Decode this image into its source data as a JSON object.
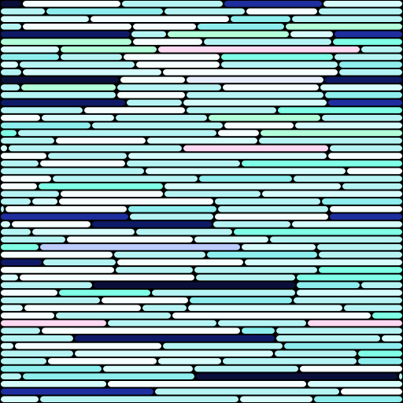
{
  "artwork": {
    "description_free": true,
    "palette": {
      "white": "#F6FFFF",
      "pale-cyan": "#D6FCFC",
      "light-cyan": "#B6F4F4",
      "cyan": "#8EEEEE",
      "aqua": "#7FFFE6",
      "mint": "#B2FFD9",
      "lavender": "#E6EEFF",
      "periwinkle": "#BCCCFF",
      "pink": "#FFD9F2",
      "royal-blue": "#1E2E9E",
      "navy": "#0E1A66",
      "midnight": "#0A0F3A"
    },
    "rows": [
      [
        [
          "midnight",
          28
        ],
        [
          "white",
          126
        ],
        [
          "light-cyan",
          130
        ],
        [
          "royal-blue",
          126
        ],
        [
          "pale-cyan",
          102
        ]
      ],
      [
        [
          "light-cyan",
          58
        ],
        [
          "cyan",
          150
        ],
        [
          "light-cyan",
          104
        ],
        [
          "white",
          92
        ],
        [
          "light-cyan",
          108
        ]
      ],
      [
        [
          "pale-cyan",
          114
        ],
        [
          "white",
          178
        ],
        [
          "cyan",
          78
        ],
        [
          "light-cyan",
          142
        ]
      ],
      [
        [
          "light-cyan",
          28
        ],
        [
          "white",
          140
        ],
        [
          "white",
          82
        ],
        [
          "cyan",
          112
        ],
        [
          "mint",
          150
        ]
      ],
      [
        [
          "navy",
          166
        ],
        [
          "light-cyan",
          46
        ],
        [
          "mint",
          156
        ],
        [
          "pale-cyan",
          56
        ],
        [
          "royal-blue",
          88
        ]
      ],
      [
        [
          "mint",
          168
        ],
        [
          "white",
          90
        ],
        [
          "light-cyan",
          164
        ],
        [
          "aqua",
          90
        ]
      ],
      [
        [
          "pale-cyan",
          76
        ],
        [
          "mint",
          124
        ],
        [
          "pink",
          258
        ],
        [
          "light-cyan",
          54
        ]
      ],
      [
        [
          "cyan",
          76
        ],
        [
          "light-cyan",
          80
        ],
        [
          "white",
          124
        ],
        [
          "aqua",
          144
        ],
        [
          "light-cyan",
          88
        ]
      ],
      [
        [
          "pale-cyan",
          24
        ],
        [
          "light-cyan",
          148
        ],
        [
          "white",
          108
        ],
        [
          "light-cyan",
          150
        ],
        [
          "cyan",
          82
        ]
      ],
      [
        [
          "light-cyan",
          28
        ],
        [
          "pale-cyan",
          178
        ],
        [
          "white",
          224
        ],
        [
          "light-cyan",
          82
        ]
      ],
      [
        [
          "midnight",
          152
        ],
        [
          "white",
          84
        ],
        [
          "lavender",
          176
        ],
        [
          "navy",
          100
        ]
      ],
      [
        [
          "light-cyan",
          26
        ],
        [
          "mint",
          122
        ],
        [
          "light-cyan",
          134
        ],
        [
          "white",
          124
        ],
        [
          "pale-cyan",
          106
        ]
      ],
      [
        [
          "light-cyan",
          148
        ],
        [
          "white",
          88
        ],
        [
          "light-cyan",
          176
        ],
        [
          "cyan",
          100
        ]
      ],
      [
        [
          "navy",
          160
        ],
        [
          "light-cyan",
          72
        ],
        [
          "pale-cyan",
          184
        ],
        [
          "royal-blue",
          96
        ]
      ],
      [
        [
          "light-cyan",
          106
        ],
        [
          "white",
          130
        ],
        [
          "light-cyan",
          116
        ],
        [
          "aqua",
          160
        ]
      ],
      [
        [
          "white",
          52
        ],
        [
          "pale-cyan",
          94
        ],
        [
          "light-cyan",
          118
        ],
        [
          "mint",
          144
        ],
        [
          "light-cyan",
          104
        ]
      ],
      [
        [
          "cyan",
          116
        ],
        [
          "light-cyan",
          168
        ],
        [
          "white",
          90
        ],
        [
          "pale-cyan",
          138
        ]
      ],
      [
        [
          "aqua",
          22
        ],
        [
          "light-cyan",
          254
        ],
        [
          "white",
          54
        ],
        [
          "mint",
          182
        ]
      ],
      [
        [
          "light-cyan",
          70
        ],
        [
          "white",
          116
        ],
        [
          "pale-cyan",
          142
        ],
        [
          "light-cyan",
          184
        ]
      ],
      [
        [
          "pale-cyan",
          10
        ],
        [
          "light-cyan",
          222
        ],
        [
          "pink",
          186
        ],
        [
          "light-cyan",
          94
        ]
      ],
      [
        [
          "white",
          60
        ],
        [
          "light-cyan",
          102
        ],
        [
          "pale-cyan",
          254
        ],
        [
          "white",
          96
        ]
      ],
      [
        [
          "light-cyan",
          50
        ],
        [
          "white",
          110
        ],
        [
          "light-cyan",
          146
        ],
        [
          "aqua",
          206
        ]
      ],
      [
        [
          "light-cyan",
          184
        ],
        [
          "pale-cyan",
          256
        ],
        [
          "white",
          72
        ]
      ],
      [
        [
          "white",
          66
        ],
        [
          "light-cyan",
          186
        ],
        [
          "cyan",
          120
        ],
        [
          "light-cyan",
          140
        ]
      ],
      [
        [
          "white",
          48
        ],
        [
          "aqua",
          160
        ],
        [
          "pale-cyan",
          226
        ],
        [
          "light-cyan",
          78
        ]
      ],
      [
        [
          "light-cyan",
          76
        ],
        [
          "white",
          132
        ],
        [
          "light-cyan",
          124
        ],
        [
          "pale-cyan",
          180
        ]
      ],
      [
        [
          "light-cyan",
          40
        ],
        [
          "pale-cyan",
          34
        ],
        [
          "white",
          198
        ],
        [
          "light-cyan",
          136
        ],
        [
          "cyan",
          104
        ]
      ],
      [
        [
          "light-cyan",
          6
        ],
        [
          "white",
          156
        ],
        [
          "cyan",
          114
        ],
        [
          "light-cyan",
          142
        ],
        [
          "white",
          94
        ]
      ],
      [
        [
          "royal-blue",
          164
        ],
        [
          "light-cyan",
          108
        ],
        [
          "white",
          146
        ],
        [
          "royal-blue",
          94
        ]
      ],
      [
        [
          "pale-cyan",
          14
        ],
        [
          "white",
          102
        ],
        [
          "navy",
          154
        ],
        [
          "light-cyan",
          100
        ],
        [
          "pale-cyan",
          142
        ]
      ],
      [
        [
          "light-cyan",
          40
        ],
        [
          "pale-cyan",
          132
        ],
        [
          "light-cyan",
          124
        ],
        [
          "aqua",
          216
        ]
      ],
      [
        [
          "light-cyan",
          84
        ],
        [
          "white",
          162
        ],
        [
          "pale-cyan",
          96
        ],
        [
          "light-cyan",
          170
        ]
      ],
      [
        [
          "aqua",
          50
        ],
        [
          "periwinkle",
          256
        ],
        [
          "pale-cyan",
          96
        ],
        [
          "light-cyan",
          110
        ]
      ],
      [
        [
          "white",
          144
        ],
        [
          "light-cyan",
          118
        ],
        [
          "cyan",
          142
        ],
        [
          "light-cyan",
          108
        ]
      ],
      [
        [
          "navy",
          54
        ],
        [
          "light-cyan",
          94
        ],
        [
          "white",
          162
        ],
        [
          "pale-cyan",
          202
        ]
      ],
      [
        [
          "white",
          146
        ],
        [
          "light-cyan",
          100
        ],
        [
          "light-cyan",
          158
        ],
        [
          "aqua",
          108
        ]
      ],
      [
        [
          "pale-cyan",
          24
        ],
        [
          "white",
          224
        ],
        [
          "light-cyan",
          128
        ],
        [
          "aqua",
          136
        ]
      ],
      [
        [
          "light-cyan",
          118
        ],
        [
          "midnight",
          258
        ],
        [
          "cyan",
          82
        ],
        [
          "light-cyan",
          54
        ]
      ],
      [
        [
          "white",
          74
        ],
        [
          "aqua",
          118
        ],
        [
          "light-cyan",
          184
        ],
        [
          "pale-cyan",
          136
        ]
      ],
      [
        [
          "light-cyan",
          128
        ],
        [
          "white",
          112
        ],
        [
          "cyan",
          132
        ],
        [
          "light-cyan",
          140
        ]
      ],
      [
        [
          "pale-cyan",
          30
        ],
        [
          "white",
          150
        ],
        [
          "light-cyan",
          58
        ],
        [
          "pale-cyan",
          198
        ],
        [
          "light-cyan",
          76
        ]
      ],
      [
        [
          "white",
          70
        ],
        [
          "light-cyan",
          148
        ],
        [
          "white",
          254
        ],
        [
          "aqua",
          40
        ]
      ],
      [
        [
          "pink",
          136
        ],
        [
          "light-cyan",
          140
        ],
        [
          "light-cyan",
          114
        ],
        [
          "pink",
          122
        ]
      ],
      [
        [
          "light-cyan",
          52
        ],
        [
          "white",
          254
        ],
        [
          "cyan",
          44
        ],
        [
          "light-cyan",
          162
        ]
      ],
      [
        [
          "light-cyan",
          94
        ],
        [
          "navy",
          256
        ],
        [
          "light-cyan",
          134
        ],
        [
          "pale-cyan",
          28
        ]
      ],
      [
        [
          "pale-cyan",
          18
        ],
        [
          "white",
          188
        ],
        [
          "light-cyan",
          154
        ],
        [
          "cyan",
          152
        ]
      ],
      [
        [
          "light-cyan",
          94
        ],
        [
          "pale-cyan",
          254
        ],
        [
          "light-cyan",
          106
        ],
        [
          "aqua",
          58
        ]
      ],
      [
        [
          "light-cyan",
          60
        ],
        [
          "white",
          140
        ],
        [
          "pale-cyan",
          82
        ],
        [
          "light-cyan",
          172
        ],
        [
          "cyan",
          58
        ]
      ],
      [
        [
          "cyan",
          130
        ],
        [
          "pale-cyan",
          116
        ],
        [
          "light-cyan",
          134
        ],
        [
          "white",
          132
        ]
      ],
      [
        [
          "light-cyan",
          28
        ],
        [
          "cyan",
          220
        ],
        [
          "midnight",
          258
        ],
        [
          "light-cyan",
          6
        ]
      ],
      [
        [
          "pale-cyan",
          136
        ],
        [
          "white",
          254
        ],
        [
          "pale-cyan",
          122
        ]
      ],
      [
        [
          "royal-blue",
          196
        ],
        [
          "light-cyan",
          236
        ],
        [
          "white",
          80
        ]
      ],
      [
        [
          "pale-cyan",
          50
        ],
        [
          "light-cyan",
          254
        ],
        [
          "pale-cyan",
          94
        ],
        [
          "cyan",
          114
        ]
      ]
    ]
  }
}
